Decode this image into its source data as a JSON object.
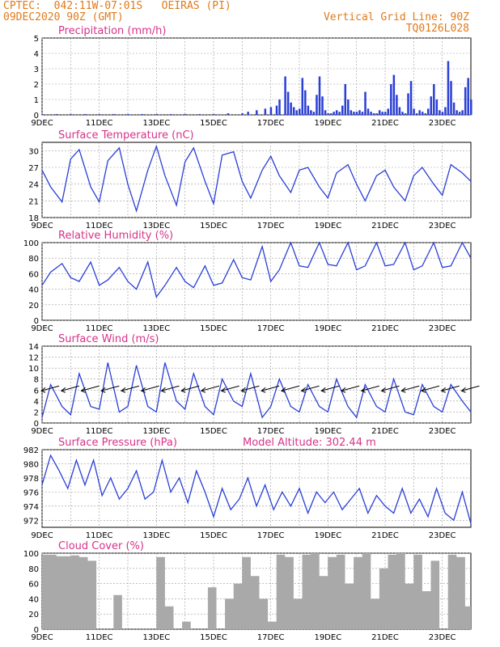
{
  "header": {
    "line1": "CPTEC:  042:11W-07:01S   OEIRAS (PI)",
    "line2": "09DEC2020 90Z (GMT)",
    "right1": "Vertical Grid Line: 90Z",
    "right2": "TQ0126L028"
  },
  "colors": {
    "header": "#e07a1a",
    "panel_title": "#d6338a",
    "series": "#2a3fd6",
    "bars": "#2a3fd6",
    "cloud": "#a9a9a9",
    "grid": "#9a9a9a"
  },
  "x_axis": {
    "labels": [
      "9DEC",
      "11DEC",
      "13DEC",
      "15DEC",
      "17DEC",
      "19DEC",
      "21DEC",
      "23DEC"
    ],
    "range_days": [
      9,
      24
    ]
  },
  "chart_data": [
    {
      "id": "precip",
      "type": "bar",
      "title": "Precipitation (mm/h)",
      "ylim": [
        0,
        5
      ],
      "yticks": [
        0,
        1,
        2,
        3,
        4,
        5
      ],
      "x": [
        9,
        9.5,
        10,
        10.5,
        11,
        11.5,
        12,
        12.5,
        13,
        13.5,
        14,
        14.5,
        15,
        15.5,
        16,
        16.2,
        16.5,
        16.8,
        17,
        17.2,
        17.3,
        17.5,
        17.6,
        17.7,
        17.8,
        17.9,
        18,
        18.1,
        18.2,
        18.3,
        18.4,
        18.5,
        18.6,
        18.7,
        18.8,
        18.9,
        19,
        19.1,
        19.2,
        19.3,
        19.4,
        19.5,
        19.6,
        19.7,
        19.8,
        19.9,
        20,
        20.1,
        20.2,
        20.3,
        20.4,
        20.5,
        20.6,
        20.7,
        20.8,
        20.9,
        21,
        21.1,
        21.2,
        21.3,
        21.4,
        21.5,
        21.6,
        21.7,
        21.8,
        21.9,
        22,
        22.1,
        22.2,
        22.3,
        22.4,
        22.5,
        22.6,
        22.7,
        22.8,
        22.9,
        23,
        23.1,
        23.2,
        23.3,
        23.4,
        23.5,
        23.6,
        23.7,
        23.8,
        23.9,
        24
      ],
      "values": [
        0.05,
        0.05,
        0.05,
        0.05,
        0.05,
        0.05,
        0.05,
        0.05,
        0.05,
        0.05,
        0.05,
        0.05,
        0.05,
        0.1,
        0.1,
        0.2,
        0.3,
        0.4,
        0.5,
        0.6,
        1.0,
        2.5,
        1.5,
        0.8,
        0.5,
        0.3,
        0.4,
        2.4,
        1.6,
        0.6,
        0.3,
        0.2,
        1.3,
        2.5,
        1.2,
        0.3,
        0.1,
        0.1,
        0.2,
        0.3,
        0.2,
        0.6,
        2.0,
        1.0,
        0.3,
        0.2,
        0.2,
        0.3,
        0.2,
        1.5,
        0.4,
        0.2,
        0.1,
        0.1,
        0.3,
        0.2,
        0.2,
        0.4,
        2.0,
        2.6,
        1.3,
        0.5,
        0.2,
        0.1,
        1.4,
        2.2,
        0.4,
        0.1,
        0.3,
        0.2,
        0.1,
        0.4,
        1.2,
        2.0,
        1.0,
        0.3,
        0.2,
        0.5,
        3.5,
        2.2,
        0.8,
        0.3,
        0.2,
        0.3,
        1.8,
        2.4,
        1.0
      ]
    },
    {
      "id": "temp",
      "type": "line",
      "title": "Surface Temperature (nC)",
      "ylim": [
        18,
        31.5
      ],
      "yticks": [
        18,
        21,
        24,
        27,
        30
      ],
      "x": [
        9,
        9.3,
        9.7,
        10,
        10.3,
        10.7,
        11,
        11.3,
        11.7,
        12,
        12.3,
        12.7,
        13,
        13.3,
        13.7,
        14,
        14.3,
        14.7,
        15,
        15.3,
        15.7,
        16,
        16.3,
        16.7,
        17,
        17.3,
        17.7,
        18,
        18.3,
        18.7,
        19,
        19.3,
        19.7,
        20,
        20.3,
        20.7,
        21,
        21.3,
        21.7,
        22,
        22.3,
        22.7,
        23,
        23.3,
        23.7,
        24
      ],
      "values": [
        26.5,
        23.5,
        20.8,
        28.5,
        30.2,
        23.5,
        20.8,
        28.2,
        30.5,
        24,
        19.2,
        26.5,
        30.8,
        25.5,
        20.2,
        28,
        30.5,
        24.5,
        20.5,
        29.2,
        29.8,
        24.5,
        21.5,
        26.5,
        29,
        25.5,
        22.5,
        26.5,
        27,
        23.5,
        21.5,
        26,
        27.5,
        24,
        21,
        25.5,
        26.5,
        23.5,
        21,
        25.5,
        27,
        24,
        22,
        27.5,
        26,
        24.5
      ]
    },
    {
      "id": "rh",
      "type": "line",
      "title": "Relative Humidity (%)",
      "ylim": [
        0,
        100
      ],
      "yticks": [
        0,
        20,
        40,
        60,
        80,
        100
      ],
      "x": [
        9,
        9.3,
        9.7,
        10,
        10.3,
        10.7,
        11,
        11.3,
        11.7,
        12,
        12.3,
        12.7,
        13,
        13.3,
        13.7,
        14,
        14.3,
        14.7,
        15,
        15.3,
        15.7,
        16,
        16.3,
        16.7,
        17,
        17.3,
        17.7,
        18,
        18.3,
        18.7,
        19,
        19.3,
        19.7,
        20,
        20.3,
        20.7,
        21,
        21.3,
        21.7,
        22,
        22.3,
        22.7,
        23,
        23.3,
        23.7,
        24
      ],
      "values": [
        45,
        62,
        73,
        55,
        50,
        75,
        45,
        52,
        68,
        50,
        40,
        75,
        30,
        45,
        68,
        50,
        42,
        70,
        45,
        48,
        78,
        55,
        52,
        95,
        50,
        65,
        100,
        70,
        68,
        100,
        72,
        70,
        100,
        65,
        70,
        100,
        70,
        72,
        100,
        65,
        70,
        100,
        68,
        70,
        100,
        80
      ]
    },
    {
      "id": "wind",
      "type": "line",
      "title": "Surface Wind (m/s)",
      "ylim": [
        0,
        14
      ],
      "yticks": [
        0,
        2,
        4,
        6,
        8,
        10,
        12,
        14
      ],
      "x": [
        9,
        9.3,
        9.7,
        10,
        10.3,
        10.7,
        11,
        11.3,
        11.7,
        12,
        12.3,
        12.7,
        13,
        13.3,
        13.7,
        14,
        14.3,
        14.7,
        15,
        15.3,
        15.7,
        16,
        16.3,
        16.7,
        17,
        17.3,
        17.7,
        18,
        18.3,
        18.7,
        19,
        19.3,
        19.7,
        20,
        20.3,
        20.7,
        21,
        21.3,
        21.7,
        22,
        22.3,
        22.7,
        23,
        23.3,
        23.7,
        24
      ],
      "values": [
        1,
        7,
        3,
        1.5,
        9,
        3,
        2.5,
        11,
        2,
        3,
        10.5,
        3,
        2,
        11,
        4,
        2.5,
        9,
        3,
        1.5,
        8,
        4,
        3,
        9,
        1,
        3,
        8,
        3,
        2,
        7,
        3,
        2,
        8,
        3,
        1,
        7,
        3,
        2,
        8,
        2,
        1.5,
        7,
        3,
        2,
        7,
        4,
        2
      ],
      "barbs": {
        "x": [
          9.2,
          9.9,
          10.6,
          11.3,
          12,
          12.7,
          13.4,
          14.1,
          14.8,
          15.5,
          16.2,
          16.9,
          17.6,
          18.3,
          19,
          19.7,
          20.4,
          21.1,
          21.8,
          22.5,
          23.2,
          23.9
        ]
      }
    },
    {
      "id": "pres",
      "type": "line",
      "title": "Surface Pressure (hPa)",
      "annotation": "Model Altitude: 302.44 m",
      "ylim": [
        971,
        982
      ],
      "yticks": [
        972,
        974,
        976,
        978,
        980,
        982
      ],
      "x": [
        9,
        9.3,
        9.6,
        9.9,
        10.2,
        10.5,
        10.8,
        11.1,
        11.4,
        11.7,
        12,
        12.3,
        12.6,
        12.9,
        13.2,
        13.5,
        13.8,
        14.1,
        14.4,
        14.7,
        15,
        15.3,
        15.6,
        15.9,
        16.2,
        16.5,
        16.8,
        17.1,
        17.4,
        17.7,
        18,
        18.3,
        18.6,
        18.9,
        19.2,
        19.5,
        19.8,
        20.1,
        20.4,
        20.7,
        21,
        21.3,
        21.6,
        21.9,
        22.2,
        22.5,
        22.8,
        23.1,
        23.4,
        23.7,
        24
      ],
      "values": [
        977,
        981.2,
        979,
        976.5,
        980.5,
        977,
        980.5,
        975.5,
        978,
        975,
        976.5,
        979,
        975,
        976,
        980.5,
        976,
        978,
        974.5,
        979,
        976,
        972.5,
        976.5,
        973.5,
        975,
        978,
        974,
        977,
        973.5,
        976,
        974,
        976.5,
        973,
        976,
        974.5,
        976,
        973.5,
        975,
        976.5,
        973,
        975.5,
        974,
        973,
        976.5,
        973,
        975,
        972.5,
        976.5,
        973,
        972,
        976,
        971.5
      ]
    },
    {
      "id": "cloud",
      "type": "area",
      "title": "Cloud Cover (%)",
      "ylim": [
        0,
        100
      ],
      "yticks": [
        0,
        20,
        40,
        60,
        80,
        100
      ],
      "x": [
        9,
        9.5,
        10,
        10.3,
        10.6,
        10.9,
        11.2,
        11.5,
        11.8,
        12.1,
        12.4,
        12.7,
        13,
        13.3,
        13.6,
        13.9,
        14.2,
        14.5,
        14.8,
        15.1,
        15.4,
        15.7,
        16,
        16.3,
        16.6,
        16.9,
        17.2,
        17.5,
        17.8,
        18.1,
        18.4,
        18.7,
        19,
        19.3,
        19.6,
        19.9,
        20.2,
        20.5,
        20.8,
        21.1,
        21.4,
        21.7,
        22,
        22.3,
        22.6,
        22.9,
        23.2,
        23.5,
        23.8,
        24
      ],
      "values": [
        98,
        96,
        97,
        95,
        90,
        0,
        0,
        45,
        0,
        0,
        0,
        0,
        95,
        30,
        0,
        10,
        0,
        0,
        55,
        0,
        40,
        60,
        95,
        70,
        40,
        10,
        98,
        95,
        40,
        98,
        100,
        70,
        95,
        98,
        60,
        95,
        100,
        40,
        80,
        98,
        100,
        60,
        98,
        50,
        90,
        0,
        98,
        95,
        30,
        98
      ]
    }
  ]
}
